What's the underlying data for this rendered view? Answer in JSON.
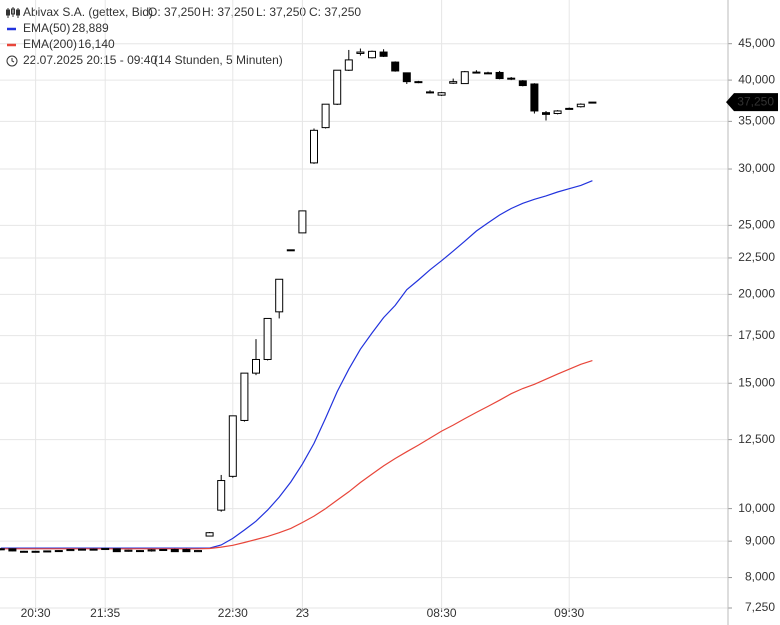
{
  "chart_data": {
    "type": "candlestick",
    "title": "Abivax S.A. (gettex, Bid)",
    "ohlc_summary": [
      "O: 37,250",
      "H: 37,250",
      "L: 37,250",
      "C: 37,250"
    ],
    "date_range": "22.07.2025 20:15 - 09:40",
    "duration": "(14 Stunden, 5 Minuten)",
    "log_scale": true,
    "grid": true,
    "ylim": [
      7250,
      51000
    ],
    "yticks": [
      {
        "value": 7250,
        "label": "7,250"
      },
      {
        "value": 8000,
        "label": "8,000"
      },
      {
        "value": 9000,
        "label": "9,000"
      },
      {
        "value": 10000,
        "label": "10,000"
      },
      {
        "value": 12500,
        "label": "12,500"
      },
      {
        "value": 15000,
        "label": "15,000"
      },
      {
        "value": 17500,
        "label": "17,500"
      },
      {
        "value": 20000,
        "label": "20,000"
      },
      {
        "value": 22500,
        "label": "22,500"
      },
      {
        "value": 25000,
        "label": "25,000"
      },
      {
        "value": 30000,
        "label": "30,000"
      },
      {
        "value": 35000,
        "label": "35,000"
      },
      {
        "value": 40000,
        "label": "40,000"
      },
      {
        "value": 45000,
        "label": "45,000"
      }
    ],
    "last_price": {
      "value": 37250,
      "label": "37,250"
    },
    "categories": [
      null,
      null,
      null,
      "20:30",
      null,
      null,
      null,
      null,
      null,
      "21:35",
      null,
      null,
      null,
      null,
      null,
      null,
      null,
      null,
      null,
      null,
      "22:30",
      null,
      null,
      null,
      null,
      null,
      "23",
      null,
      null,
      null,
      null,
      null,
      null,
      null,
      null,
      null,
      null,
      null,
      "08:30",
      null,
      null,
      null,
      null,
      null,
      null,
      null,
      null,
      null,
      null,
      "09:30",
      null,
      null
    ],
    "up_color": "#ffffff",
    "down_color": "#000000",
    "open": [
      8780,
      8780,
      8700,
      8700,
      8710,
      8720,
      8730,
      8760,
      8770,
      8760,
      8780,
      8710,
      8720,
      8720,
      8740,
      8760,
      8760,
      8700,
      9150,
      9950,
      11100,
      13300,
      15500,
      16200,
      18900,
      23100,
      24400,
      30600,
      34300,
      37000,
      41300,
      43600,
      43000,
      43800,
      42400,
      40950,
      39800,
      38500,
      38100,
      39600,
      39550,
      41000,
      40900,
      41000,
      40200,
      39900,
      39500,
      36000,
      35900,
      36500,
      36700,
      37250
    ],
    "high": [
      8800,
      8790,
      8720,
      8720,
      8730,
      8740,
      8770,
      8780,
      8780,
      8800,
      8790,
      8750,
      8740,
      8770,
      8770,
      8780,
      8780,
      8740,
      9270,
      11150,
      13500,
      15500,
      17300,
      18500,
      21000,
      23100,
      26200,
      34200,
      37000,
      41300,
      44100,
      44300,
      44000,
      44200,
      42500,
      41000,
      39900,
      38700,
      38500,
      40200,
      41200,
      41300,
      41100,
      41200,
      40400,
      40000,
      39600,
      36200,
      36300,
      36600,
      37100,
      37250
    ],
    "low": [
      8740,
      8710,
      8690,
      8690,
      8700,
      8710,
      8720,
      8750,
      8750,
      8750,
      8690,
      8700,
      8700,
      8700,
      8720,
      8690,
      8690,
      8690,
      9140,
      9900,
      11050,
      13250,
      15400,
      16150,
      18500,
      23100,
      24400,
      30500,
      34200,
      36900,
      41200,
      43300,
      42900,
      43100,
      41100,
      39500,
      39600,
      38300,
      38000,
      39500,
      39500,
      40900,
      40800,
      40100,
      40000,
      39200,
      35900,
      35100,
      35800,
      36400,
      36600,
      37250
    ],
    "close": [
      8760,
      8720,
      8710,
      8710,
      8720,
      8730,
      8760,
      8770,
      8760,
      8790,
      8700,
      8740,
      8730,
      8750,
      8760,
      8700,
      8700,
      8730,
      9250,
      10950,
      13500,
      15500,
      16200,
      18500,
      21000,
      23100,
      26200,
      34000,
      37000,
      41300,
      42700,
      43800,
      43900,
      43200,
      41200,
      39800,
      39700,
      38400,
      38400,
      39800,
      41100,
      41050,
      40950,
      40200,
      40250,
      39300,
      36200,
      35800,
      36200,
      36500,
      37000,
      37250
    ],
    "series": [
      {
        "name": "EMA(50)",
        "color": "#2233dd",
        "value_label": "28,889",
        "values": [
          8800,
          8800,
          8800,
          8800,
          8800,
          8800,
          8800,
          8800,
          8800,
          8800,
          8800,
          8800,
          8800,
          8800,
          8800,
          8800,
          8800,
          8800,
          8800,
          8890,
          9080,
          9330,
          9600,
          9950,
          10380,
          10900,
          11550,
          12350,
          13400,
          14600,
          15700,
          16750,
          17650,
          18550,
          19300,
          20300,
          20950,
          21650,
          22300,
          23000,
          23750,
          24550,
          25200,
          25850,
          26400,
          26850,
          27200,
          27500,
          27850,
          28150,
          28450,
          28889
        ]
      },
      {
        "name": "EMA(200)",
        "color": "#e8463a",
        "value_label": "16,140",
        "values": [
          8780,
          8780,
          8780,
          8780,
          8780,
          8780,
          8780,
          8780,
          8780,
          8780,
          8780,
          8780,
          8780,
          8780,
          8780,
          8780,
          8780,
          8780,
          8790,
          8830,
          8880,
          8960,
          9050,
          9140,
          9250,
          9380,
          9560,
          9760,
          10000,
          10280,
          10560,
          10880,
          11180,
          11480,
          11760,
          12020,
          12280,
          12560,
          12850,
          13100,
          13380,
          13650,
          13920,
          14200,
          14500,
          14750,
          14950,
          15200,
          15450,
          15700,
          15950,
          16140
        ]
      }
    ]
  }
}
